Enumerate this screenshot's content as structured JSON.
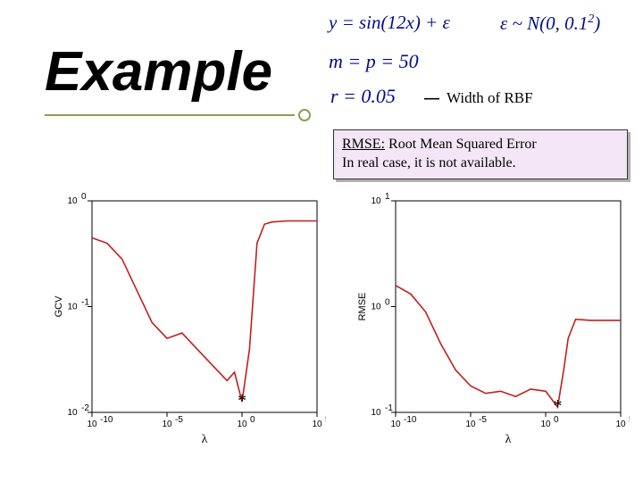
{
  "title": "Example",
  "equations": {
    "eq1": "y = sin(12x) + ε",
    "eq2_pre": "ε ~ N(0, 0.1",
    "eq2_sup": "2",
    "eq2_post": ")",
    "eq3": "m = p = 50",
    "eq4": "r = 0.05"
  },
  "width_label": "Width of RBF",
  "note_line1a": "RMSE:",
  "note_line1b": " Root Mean Squared Error",
  "note_line2": "In real case, it is not available.",
  "chart_left": {
    "type": "line",
    "ylabel": "GCV",
    "xlabel": "λ",
    "y_log": true,
    "x_log": true,
    "ylim_exp": [
      -2,
      0
    ],
    "xlim_exp": [
      -10,
      5
    ],
    "ytick_exp": [
      -2,
      -1,
      0
    ],
    "xtick_exp": [
      -10,
      -5,
      0,
      5
    ],
    "line_color": "#c41e1e",
    "minimum_marker_idx": 11,
    "points_exp": [
      [
        -10,
        -0.35
      ],
      [
        -9,
        -0.4
      ],
      [
        -8,
        -0.55
      ],
      [
        -7,
        -0.85
      ],
      [
        -6,
        -1.15
      ],
      [
        -5,
        -1.3
      ],
      [
        -4,
        -1.25
      ],
      [
        -3,
        -1.4
      ],
      [
        -2,
        -1.55
      ],
      [
        -1,
        -1.7
      ],
      [
        -0.5,
        -1.62
      ],
      [
        0,
        -1.9
      ],
      [
        0.5,
        -1.4
      ],
      [
        1,
        -0.4
      ],
      [
        1.5,
        -0.22
      ],
      [
        2,
        -0.2
      ],
      [
        3,
        -0.19
      ],
      [
        4,
        -0.19
      ],
      [
        5,
        -0.19
      ]
    ]
  },
  "chart_right": {
    "type": "line",
    "ylabel": "RMSE",
    "xlabel": "λ",
    "y_log": true,
    "x_log": true,
    "ylim_exp": [
      -1,
      1
    ],
    "xlim_exp": [
      -10,
      5
    ],
    "ytick_exp": [
      -1,
      0,
      1
    ],
    "xtick_exp": [
      -10,
      -5,
      0,
      5
    ],
    "line_color": "#c41e1e",
    "minimum_marker_idx": 11,
    "points_exp": [
      [
        -10,
        0.2
      ],
      [
        -9,
        0.12
      ],
      [
        -8,
        -0.05
      ],
      [
        -7,
        -0.35
      ],
      [
        -6,
        -0.6
      ],
      [
        -5,
        -0.75
      ],
      [
        -4,
        -0.82
      ],
      [
        -3,
        -0.8
      ],
      [
        -2,
        -0.85
      ],
      [
        -1,
        -0.78
      ],
      [
        0,
        -0.8
      ],
      [
        0.8,
        -0.95
      ],
      [
        1.2,
        -0.6
      ],
      [
        1.5,
        -0.3
      ],
      [
        2,
        -0.12
      ],
      [
        3,
        -0.13
      ],
      [
        4,
        -0.13
      ],
      [
        5,
        -0.13
      ]
    ]
  },
  "colors": {
    "line": "#c41e1e",
    "axis": "#000000",
    "notefill": "#f5e6f7",
    "underline": "#8aa050",
    "math": "#000c8a"
  }
}
